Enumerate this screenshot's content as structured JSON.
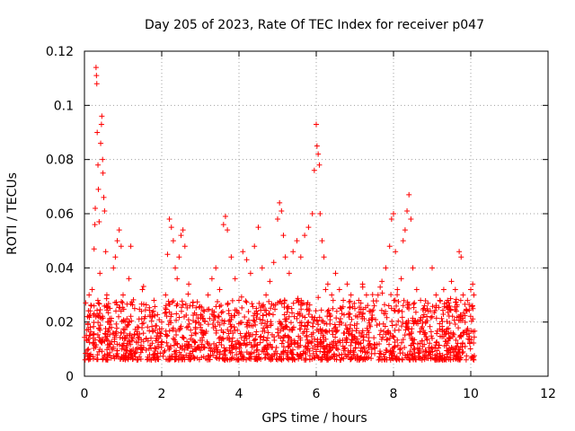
{
  "chart_data": {
    "type": "scatter",
    "title": "Day 205 of 2023, Rate Of TEC Index for receiver p047",
    "xlabel": "GPS time / hours",
    "ylabel": "ROTI / TECUs",
    "xlim": [
      0,
      12
    ],
    "ylim": [
      0,
      0.12
    ],
    "x_ticks": [
      0,
      2,
      4,
      6,
      8,
      10,
      12
    ],
    "y_ticks": [
      0,
      0.02,
      0.04,
      0.06,
      0.08,
      0.1,
      0.12
    ],
    "x_tick_labels": [
      "0",
      "2",
      "4",
      "6",
      "8",
      "10",
      "12"
    ],
    "y_tick_labels": [
      "0",
      "0.02",
      "0.04",
      "0.06",
      "0.08",
      "0.1",
      "0.12"
    ],
    "grid": true,
    "marker": "+",
    "color": "#ff0000",
    "series": [
      {
        "name": "ROTI",
        "points": [
          [
            0.05,
            0.015
          ],
          [
            0.08,
            0.022
          ],
          [
            0.1,
            0.01
          ],
          [
            0.12,
            0.03
          ],
          [
            0.15,
            0.018
          ],
          [
            0.18,
            0.026
          ],
          [
            0.2,
            0.032
          ],
          [
            0.22,
            0.012
          ],
          [
            0.25,
            0.047
          ],
          [
            0.27,
            0.056
          ],
          [
            0.28,
            0.062
          ],
          [
            0.3,
            0.114
          ],
          [
            0.31,
            0.111
          ],
          [
            0.32,
            0.108
          ],
          [
            0.33,
            0.09
          ],
          [
            0.35,
            0.078
          ],
          [
            0.36,
            0.069
          ],
          [
            0.38,
            0.057
          ],
          [
            0.4,
            0.038
          ],
          [
            0.42,
            0.086
          ],
          [
            0.44,
            0.093
          ],
          [
            0.45,
            0.096
          ],
          [
            0.47,
            0.08
          ],
          [
            0.48,
            0.075
          ],
          [
            0.5,
            0.066
          ],
          [
            0.52,
            0.061
          ],
          [
            0.55,
            0.046
          ],
          [
            0.58,
            0.03
          ],
          [
            0.6,
            0.02
          ],
          [
            0.65,
            0.012
          ],
          [
            0.7,
            0.018
          ],
          [
            0.75,
            0.04
          ],
          [
            0.8,
            0.044
          ],
          [
            0.85,
            0.05
          ],
          [
            0.9,
            0.054
          ],
          [
            0.95,
            0.048
          ],
          [
            1.0,
            0.03
          ],
          [
            1.05,
            0.02
          ],
          [
            1.1,
            0.015
          ],
          [
            1.15,
            0.036
          ],
          [
            1.2,
            0.048
          ],
          [
            1.3,
            0.025
          ],
          [
            1.4,
            0.018
          ],
          [
            1.5,
            0.032
          ],
          [
            1.6,
            0.014
          ],
          [
            1.7,
            0.022
          ],
          [
            1.8,
            0.028
          ],
          [
            1.9,
            0.016
          ],
          [
            2.0,
            0.02
          ],
          [
            2.1,
            0.03
          ],
          [
            2.15,
            0.045
          ],
          [
            2.2,
            0.058
          ],
          [
            2.25,
            0.055
          ],
          [
            2.3,
            0.05
          ],
          [
            2.35,
            0.04
          ],
          [
            2.4,
            0.036
          ],
          [
            2.45,
            0.044
          ],
          [
            2.5,
            0.052
          ],
          [
            2.55,
            0.054
          ],
          [
            2.6,
            0.048
          ],
          [
            2.7,
            0.034
          ],
          [
            2.8,
            0.026
          ],
          [
            2.9,
            0.02
          ],
          [
            3.0,
            0.018
          ],
          [
            3.1,
            0.024
          ],
          [
            3.2,
            0.03
          ],
          [
            3.3,
            0.036
          ],
          [
            3.4,
            0.04
          ],
          [
            3.5,
            0.032
          ],
          [
            3.6,
            0.056
          ],
          [
            3.65,
            0.059
          ],
          [
            3.7,
            0.054
          ],
          [
            3.8,
            0.044
          ],
          [
            3.9,
            0.036
          ],
          [
            4.0,
            0.028
          ],
          [
            4.1,
            0.046
          ],
          [
            4.2,
            0.043
          ],
          [
            4.3,
            0.038
          ],
          [
            4.4,
            0.048
          ],
          [
            4.5,
            0.055
          ],
          [
            4.6,
            0.04
          ],
          [
            4.7,
            0.03
          ],
          [
            4.8,
            0.035
          ],
          [
            4.9,
            0.042
          ],
          [
            5.0,
            0.058
          ],
          [
            5.05,
            0.064
          ],
          [
            5.1,
            0.061
          ],
          [
            5.15,
            0.052
          ],
          [
            5.2,
            0.044
          ],
          [
            5.3,
            0.038
          ],
          [
            5.4,
            0.046
          ],
          [
            5.5,
            0.05
          ],
          [
            5.6,
            0.044
          ],
          [
            5.7,
            0.052
          ],
          [
            5.8,
            0.055
          ],
          [
            5.9,
            0.06
          ],
          [
            5.95,
            0.076
          ],
          [
            6.0,
            0.093
          ],
          [
            6.02,
            0.085
          ],
          [
            6.05,
            0.082
          ],
          [
            6.08,
            0.078
          ],
          [
            6.1,
            0.06
          ],
          [
            6.15,
            0.05
          ],
          [
            6.2,
            0.044
          ],
          [
            6.3,
            0.034
          ],
          [
            6.4,
            0.03
          ],
          [
            6.5,
            0.038
          ],
          [
            6.6,
            0.032
          ],
          [
            6.7,
            0.028
          ],
          [
            6.8,
            0.034
          ],
          [
            6.9,
            0.03
          ],
          [
            7.0,
            0.025
          ],
          [
            7.1,
            0.028
          ],
          [
            7.2,
            0.034
          ],
          [
            7.3,
            0.03
          ],
          [
            7.4,
            0.024
          ],
          [
            7.5,
            0.026
          ],
          [
            7.6,
            0.03
          ],
          [
            7.7,
            0.035
          ],
          [
            7.8,
            0.04
          ],
          [
            7.9,
            0.048
          ],
          [
            7.95,
            0.058
          ],
          [
            8.0,
            0.06
          ],
          [
            8.05,
            0.046
          ],
          [
            8.1,
            0.032
          ],
          [
            8.2,
            0.036
          ],
          [
            8.25,
            0.05
          ],
          [
            8.3,
            0.054
          ],
          [
            8.35,
            0.061
          ],
          [
            8.4,
            0.067
          ],
          [
            8.45,
            0.058
          ],
          [
            8.5,
            0.04
          ],
          [
            8.6,
            0.032
          ],
          [
            8.7,
            0.028
          ],
          [
            8.8,
            0.026
          ],
          [
            8.9,
            0.024
          ],
          [
            9.0,
            0.04
          ],
          [
            9.1,
            0.03
          ],
          [
            9.2,
            0.028
          ],
          [
            9.3,
            0.032
          ],
          [
            9.4,
            0.028
          ],
          [
            9.5,
            0.035
          ],
          [
            9.6,
            0.032
          ],
          [
            9.7,
            0.046
          ],
          [
            9.75,
            0.044
          ],
          [
            9.8,
            0.03
          ],
          [
            9.9,
            0.024
          ],
          [
            10.0,
            0.032
          ],
          [
            10.05,
            0.034
          ],
          [
            10.08,
            0.03
          ]
        ]
      }
    ],
    "dense_band": {
      "description": "dense baseline cluster of ROTI values",
      "x_range": [
        0.0,
        10.1
      ],
      "y_range": [
        0.004,
        0.034
      ],
      "typical_min": 0.006,
      "typical_max": 0.028
    }
  }
}
